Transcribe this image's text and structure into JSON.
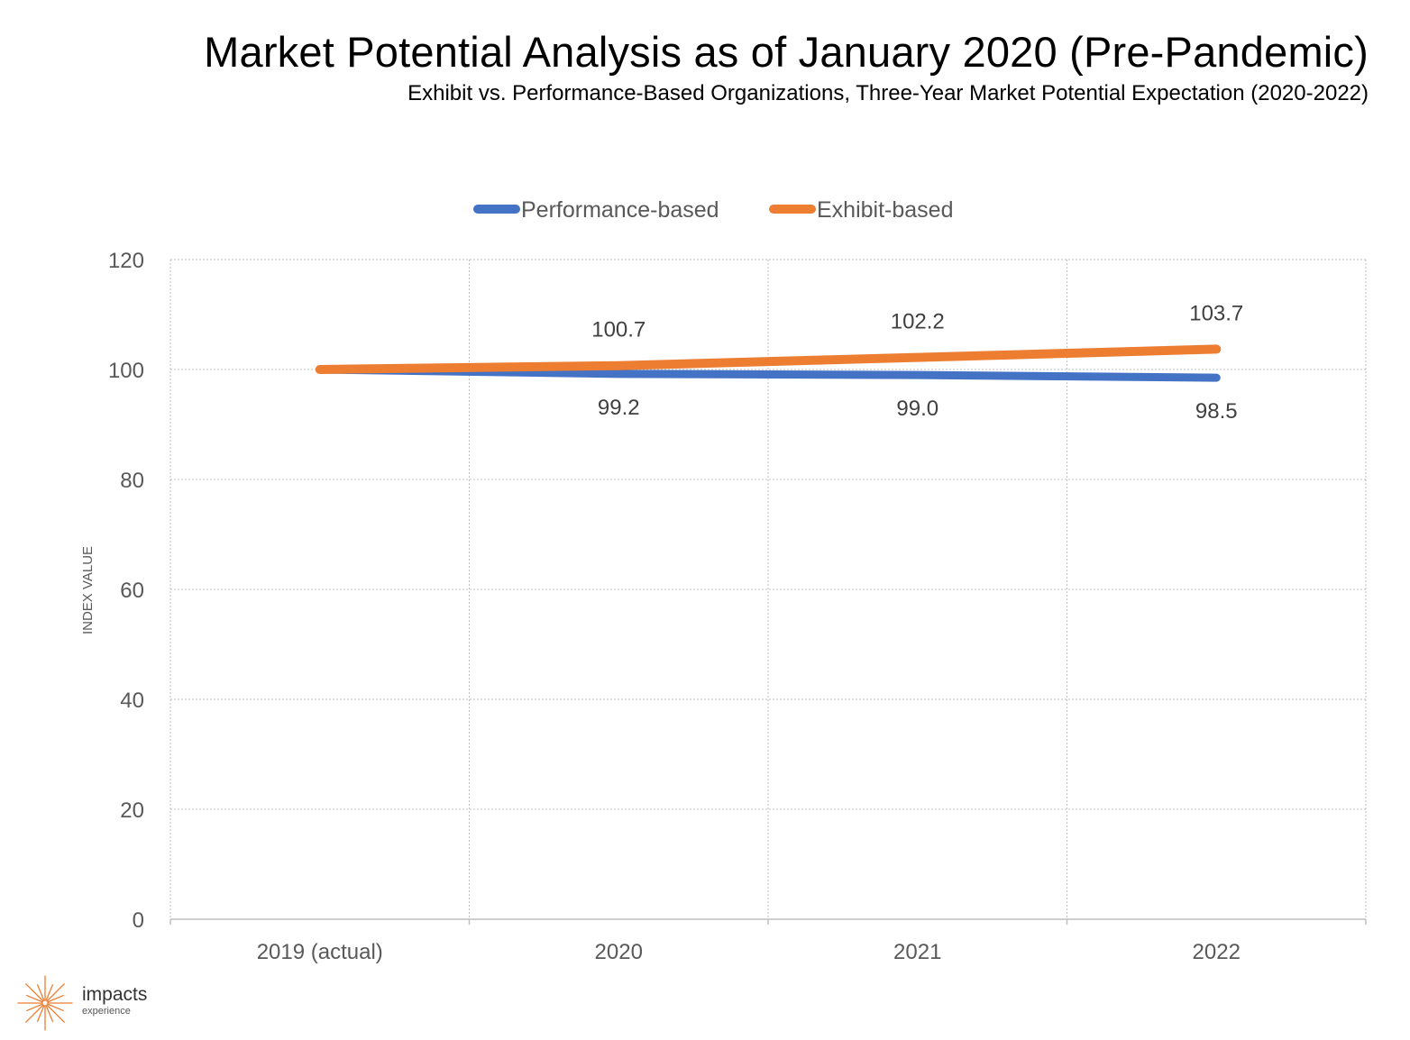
{
  "title": "Market Potential Analysis as of January 2020 (Pre-Pandemic)",
  "subtitle": "Exhibit vs. Performance-Based Organizations, Three-Year Market Potential Expectation (2020-2022)",
  "logo": {
    "name": "impacts",
    "tagline": "experience",
    "color": "#ED7D31"
  },
  "chart_data": {
    "type": "line",
    "categories": [
      "2019 (actual)",
      "2020",
      "2021",
      "2022"
    ],
    "ylabel": "INDEX VALUE",
    "xlabel": "",
    "ylim": [
      0,
      120
    ],
    "yticks": [
      "0",
      "20",
      "40",
      "60",
      "80",
      "100",
      "120"
    ],
    "grid": true,
    "legend_position": "top-center",
    "series": [
      {
        "name": "Performance-based",
        "color": "#4472C4",
        "values": [
          100,
          99.2,
          99.0,
          98.5
        ],
        "labels": [
          "",
          "99.2",
          "99.0",
          "98.5"
        ],
        "label_position": "below"
      },
      {
        "name": "Exhibit-based",
        "color": "#ED7D31",
        "values": [
          100,
          100.7,
          102.2,
          103.7
        ],
        "labels": [
          "",
          "100.7",
          "102.2",
          "103.7"
        ],
        "label_position": "above"
      }
    ]
  }
}
